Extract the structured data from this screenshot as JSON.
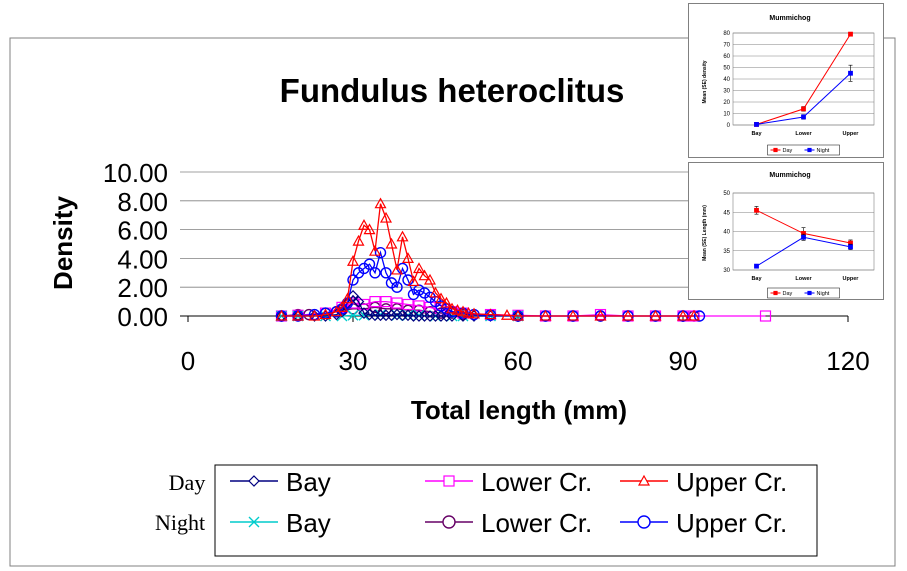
{
  "chart_data": [
    {
      "type": "line",
      "title": "Fundulus heteroclitus",
      "xlabel": "Total length (mm)",
      "ylabel": "Density",
      "xlim": [
        0,
        120
      ],
      "ylim": [
        0,
        10
      ],
      "xticks": [
        "0",
        "30",
        "60",
        "90",
        "120"
      ],
      "yticks": [
        "0.00",
        "2.00",
        "4.00",
        "6.00",
        "8.00",
        "10.00"
      ],
      "grid": true,
      "legend": {
        "groups": [
          "Day",
          "Night"
        ],
        "labels": [
          "Bay",
          "Lower Cr.",
          "Upper Cr.",
          "Bay",
          "Lower Cr.",
          "Upper Cr."
        ]
      },
      "series": [
        {
          "name": "Bay",
          "group": "Day",
          "color": "#000080",
          "marker": "diamond",
          "x": [
            17,
            20,
            23,
            25,
            27,
            28,
            29,
            30,
            31,
            32,
            33,
            34,
            35,
            36,
            37,
            38,
            39,
            40,
            41,
            42,
            43,
            44,
            45,
            46,
            47,
            48,
            50,
            52,
            55,
            60
          ],
          "y": [
            0,
            0,
            0,
            0,
            0.1,
            0.3,
            0.9,
            1.4,
            1.0,
            0.2,
            0.1,
            0.05,
            0.05,
            0.05,
            0.05,
            0.1,
            0.05,
            0.05,
            0,
            0,
            0,
            0,
            0,
            0,
            0,
            0,
            0,
            0,
            0,
            0
          ]
        },
        {
          "name": "Lower Cr.",
          "group": "Day",
          "color": "#ff00ff",
          "marker": "square",
          "x": [
            17,
            20,
            25,
            28,
            30,
            32,
            34,
            36,
            38,
            40,
            42,
            44,
            46,
            48,
            50,
            55,
            60,
            65,
            70,
            75,
            80,
            85,
            90,
            92,
            105
          ],
          "y": [
            0,
            0.05,
            0.2,
            0.6,
            0.9,
            0.8,
            1.0,
            1.0,
            0.9,
            0.8,
            0.7,
            0.6,
            0.4,
            0.3,
            0.2,
            0.1,
            0.05,
            0,
            0,
            0.1,
            0,
            0,
            0,
            0,
            0
          ]
        },
        {
          "name": "Upper Cr.",
          "group": "Day",
          "color": "#ff0000",
          "marker": "triangle",
          "x": [
            17,
            20,
            23,
            25,
            27,
            28,
            29,
            30,
            31,
            32,
            33,
            34,
            35,
            36,
            37,
            38,
            39,
            40,
            41,
            42,
            43,
            44,
            45,
            46,
            47,
            48,
            49,
            50,
            51,
            52,
            55,
            58,
            60,
            65,
            70,
            75,
            80,
            85,
            90,
            92
          ],
          "y": [
            0,
            0,
            0,
            0.1,
            0.3,
            0.6,
            1.2,
            3.8,
            5.2,
            6.3,
            6.0,
            4.5,
            7.8,
            6.8,
            5.0,
            3.2,
            5.5,
            4.0,
            2.4,
            3.3,
            2.8,
            2.5,
            1.6,
            1.2,
            0.9,
            0.5,
            0.4,
            0.3,
            0.2,
            0.15,
            0.1,
            0.05,
            0,
            0,
            0,
            0,
            0,
            0,
            0,
            0
          ]
        },
        {
          "name": "Bay",
          "group": "Night",
          "color": "#00cccc",
          "marker": "x",
          "x": [
            17,
            20,
            25,
            28,
            30,
            32,
            35,
            38,
            40,
            42,
            45,
            48,
            50,
            55,
            60
          ],
          "y": [
            0,
            0,
            0,
            0,
            0.05,
            0.05,
            0.1,
            0.05,
            0.05,
            0.05,
            0,
            0,
            0,
            0,
            0
          ]
        },
        {
          "name": "Lower Cr.",
          "group": "Night",
          "color": "#660066",
          "marker": "circle",
          "x": [
            17,
            20,
            22,
            25,
            27,
            28,
            30,
            32,
            34,
            36,
            38,
            40,
            42,
            44,
            46,
            48,
            50,
            55,
            60,
            65,
            70,
            75,
            80,
            85,
            90,
            92
          ],
          "y": [
            0,
            0.1,
            0.1,
            0.2,
            0.3,
            0.4,
            0.5,
            0.5,
            0.6,
            0.5,
            0.5,
            0.4,
            0.4,
            0.3,
            0.2,
            0.2,
            0.1,
            0.1,
            0,
            0,
            0,
            0,
            0,
            0,
            0,
            0
          ]
        },
        {
          "name": "Upper Cr.",
          "group": "Night",
          "color": "#0000ff",
          "marker": "circle",
          "x": [
            17,
            20,
            23,
            25,
            27,
            28,
            29,
            30,
            31,
            32,
            33,
            34,
            35,
            36,
            37,
            38,
            39,
            40,
            41,
            42,
            43,
            44,
            45,
            46,
            47,
            48,
            50,
            52,
            55,
            60,
            65,
            70,
            75,
            80,
            85,
            90,
            93
          ],
          "y": [
            0,
            0,
            0.1,
            0.2,
            0.3,
            0.5,
            0.9,
            2.5,
            3.0,
            3.3,
            3.6,
            3.0,
            4.4,
            3.0,
            2.3,
            2.0,
            3.3,
            2.5,
            1.5,
            1.8,
            1.6,
            1.3,
            1.0,
            0.7,
            0.5,
            0.3,
            0.2,
            0.1,
            0.05,
            0,
            0,
            0,
            0,
            0,
            0,
            0,
            0
          ]
        }
      ]
    },
    {
      "type": "line",
      "title": "Mummichog",
      "ylabel": "Mean (SE) density",
      "categories": [
        "Bay",
        "Lower",
        "Upper"
      ],
      "ylim": [
        0,
        80
      ],
      "yticks": [
        "0",
        "10",
        "20",
        "30",
        "40",
        "50",
        "60",
        "70",
        "80"
      ],
      "legend": "bottom",
      "series": [
        {
          "name": "Day",
          "color": "#ff0000",
          "marker": "square",
          "values": [
            0.5,
            14,
            79
          ],
          "errors": [
            0.3,
            2,
            1
          ]
        },
        {
          "name": "Night",
          "color": "#0000ff",
          "marker": "square",
          "values": [
            0.5,
            7,
            45
          ],
          "errors": [
            0.3,
            2,
            7
          ]
        }
      ]
    },
    {
      "type": "line",
      "title": "Mummichog",
      "ylabel": "Mean (SE) Length (mm)",
      "categories": [
        "Bay",
        "Lower",
        "Upper"
      ],
      "ylim": [
        30,
        50
      ],
      "yticks": [
        "30",
        "35",
        "40",
        "45",
        "50"
      ],
      "legend": "bottom",
      "series": [
        {
          "name": "Day",
          "color": "#ff0000",
          "marker": "square",
          "values": [
            45.5,
            39.5,
            37
          ],
          "errors": [
            1,
            1.5,
            0.8
          ]
        },
        {
          "name": "Night",
          "color": "#0000ff",
          "marker": "square",
          "values": [
            31,
            38.5,
            36
          ],
          "errors": [
            0.2,
            0.8,
            0.7
          ]
        }
      ]
    }
  ]
}
